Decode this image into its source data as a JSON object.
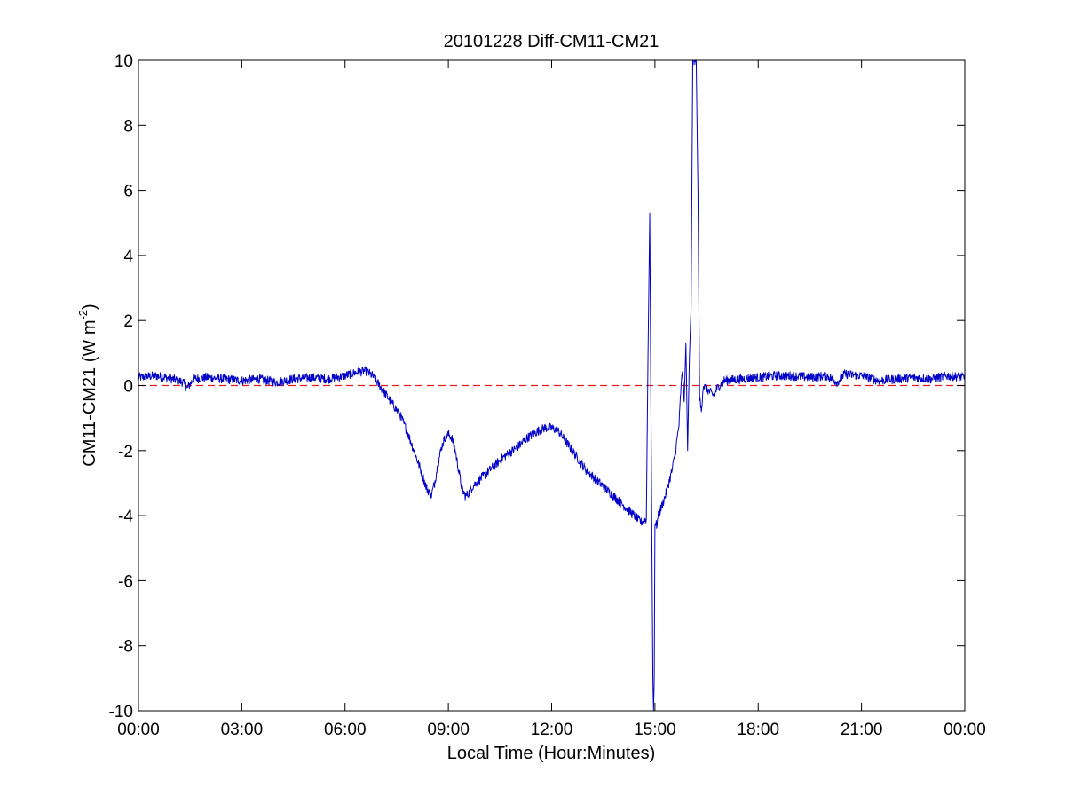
{
  "chart_data": {
    "type": "line",
    "title": "20101228 Diff-CM11-CM21",
    "xlabel": "Local Time (Hour:Minutes)",
    "ylabel": {
      "base": "CM11-CM21 (W m",
      "superscript": "-2",
      "suffix": ")"
    },
    "x_unit": "hours",
    "xlim": [
      0,
      24
    ],
    "ylim": [
      -10,
      10
    ],
    "x_ticks": [
      0,
      3,
      6,
      9,
      12,
      15,
      18,
      21,
      24
    ],
    "x_tick_labels": [
      "00:00",
      "03:00",
      "06:00",
      "09:00",
      "12:00",
      "15:00",
      "18:00",
      "21:00",
      "00:00"
    ],
    "y_ticks": [
      -10,
      -8,
      -6,
      -4,
      -2,
      0,
      2,
      4,
      6,
      8,
      10
    ],
    "y_tick_labels": [
      "-10",
      "-8",
      "-6",
      "-4",
      "-2",
      "0",
      "2",
      "4",
      "6",
      "8",
      "10"
    ],
    "grid": false,
    "colors": {
      "series": "#0000c8",
      "reference": "#e41a1c",
      "axes": "#000000"
    },
    "reference_line": {
      "y": 0,
      "style": "dashed"
    },
    "series": [
      {
        "x": [
          0.0,
          0.5,
          1.0,
          1.3,
          1.4,
          1.6,
          2.0,
          2.5,
          3.0,
          3.5,
          4.0,
          4.5,
          5.0,
          5.5,
          6.0,
          6.3,
          6.6,
          6.8,
          7.0,
          7.2,
          7.4,
          7.6,
          7.8,
          8.0,
          8.2,
          8.35,
          8.5,
          8.6,
          8.7,
          8.8,
          8.9,
          9.0,
          9.1,
          9.2,
          9.3,
          9.4,
          9.5,
          9.6,
          9.7,
          9.8,
          10.0,
          10.3,
          10.6,
          11.0,
          11.3,
          11.6,
          11.8,
          12.0,
          12.2,
          12.4,
          12.6,
          12.8,
          13.0,
          13.3,
          13.6,
          14.0,
          14.3,
          14.6,
          14.75,
          14.8,
          14.85,
          14.88,
          14.9,
          14.92,
          14.94,
          14.96,
          14.98,
          15.0,
          15.05,
          15.1,
          15.2,
          15.3,
          15.4,
          15.5,
          15.6,
          15.7,
          15.75,
          15.8,
          15.85,
          15.9,
          15.95,
          16.0,
          16.05,
          16.1,
          16.15,
          16.2,
          16.25,
          16.3,
          16.35,
          16.4,
          16.5,
          16.6,
          16.7,
          16.8,
          17.0,
          17.5,
          18.0,
          18.5,
          19.0,
          19.5,
          20.0,
          20.3,
          20.5,
          21.0,
          21.5,
          22.0,
          22.5,
          23.0,
          23.5,
          24.0
        ],
        "y": [
          0.25,
          0.3,
          0.2,
          0.1,
          -0.1,
          0.2,
          0.25,
          0.2,
          0.15,
          0.2,
          0.1,
          0.2,
          0.25,
          0.2,
          0.3,
          0.4,
          0.45,
          0.3,
          0.0,
          -0.3,
          -0.6,
          -0.9,
          -1.4,
          -2.0,
          -2.6,
          -3.1,
          -3.4,
          -3.0,
          -2.4,
          -1.9,
          -1.6,
          -1.5,
          -1.6,
          -2.0,
          -2.6,
          -3.2,
          -3.4,
          -3.3,
          -3.1,
          -3.0,
          -2.8,
          -2.5,
          -2.2,
          -1.9,
          -1.6,
          -1.4,
          -1.3,
          -1.3,
          -1.4,
          -1.7,
          -2.0,
          -2.3,
          -2.6,
          -2.9,
          -3.2,
          -3.6,
          -3.9,
          -4.2,
          -4.1,
          1.0,
          5.3,
          0.0,
          -3.0,
          -6.0,
          -9.0,
          -10.0,
          -9.0,
          -4.2,
          -4.3,
          -4.0,
          -3.7,
          -3.4,
          -3.0,
          -2.6,
          -2.0,
          -1.2,
          -0.2,
          0.5,
          -0.5,
          1.3,
          -2.0,
          0.8,
          2.4,
          10.0,
          10.0,
          10.0,
          6.0,
          -0.4,
          -0.8,
          0.0,
          -0.1,
          -0.2,
          -0.3,
          -0.1,
          0.15,
          0.2,
          0.25,
          0.3,
          0.3,
          0.25,
          0.3,
          0.1,
          0.35,
          0.3,
          0.15,
          0.2,
          0.25,
          0.2,
          0.3,
          0.25
        ]
      }
    ]
  }
}
